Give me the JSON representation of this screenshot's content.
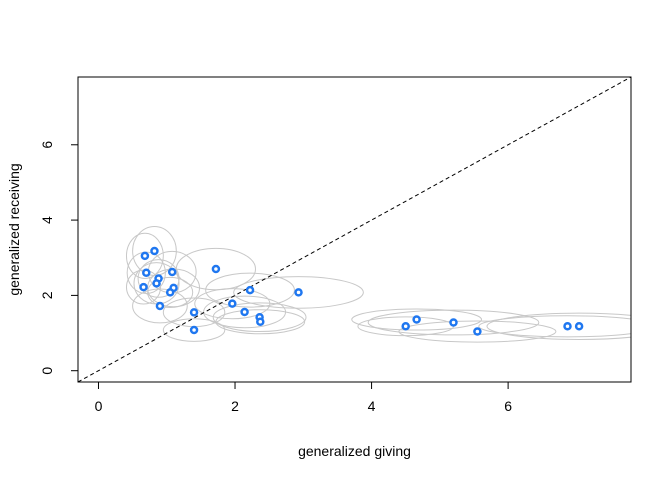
{
  "chart_data": {
    "type": "scatter",
    "title": "",
    "xlabel": "generalized giving",
    "ylabel": "generalized receiving",
    "xlim": [
      -0.3,
      7.8
    ],
    "ylim": [
      -0.3,
      7.8
    ],
    "xticks": [
      0,
      2,
      4,
      6
    ],
    "yticks": [
      0,
      2,
      4,
      6
    ],
    "grid": false,
    "legend": "none",
    "reference_line": {
      "type": "identity",
      "style": "dashed",
      "color": "#000000"
    },
    "point_color": "#1f77f0",
    "ellipse_color": "#c8c8c8",
    "points": [
      {
        "x": 0.68,
        "y": 3.05,
        "rx": 0.27,
        "ry": 0.6
      },
      {
        "x": 0.82,
        "y": 3.18,
        "rx": 0.32,
        "ry": 0.65
      },
      {
        "x": 0.7,
        "y": 2.6,
        "rx": 0.28,
        "ry": 0.55
      },
      {
        "x": 0.88,
        "y": 2.45,
        "rx": 0.3,
        "ry": 0.5
      },
      {
        "x": 0.85,
        "y": 2.32,
        "rx": 0.33,
        "ry": 0.55
      },
      {
        "x": 0.66,
        "y": 2.22,
        "rx": 0.25,
        "ry": 0.45
      },
      {
        "x": 1.08,
        "y": 2.62,
        "rx": 0.35,
        "ry": 0.55
      },
      {
        "x": 1.1,
        "y": 2.2,
        "rx": 0.38,
        "ry": 0.5
      },
      {
        "x": 1.05,
        "y": 2.08,
        "rx": 0.33,
        "ry": 0.4
      },
      {
        "x": 0.9,
        "y": 1.72,
        "rx": 0.4,
        "ry": 0.45
      },
      {
        "x": 1.72,
        "y": 2.7,
        "rx": 0.58,
        "ry": 0.55
      },
      {
        "x": 1.4,
        "y": 1.55,
        "rx": 0.45,
        "ry": 0.38
      },
      {
        "x": 1.4,
        "y": 1.08,
        "rx": 0.45,
        "ry": 0.3
      },
      {
        "x": 1.96,
        "y": 1.78,
        "rx": 0.55,
        "ry": 0.4
      },
      {
        "x": 2.22,
        "y": 2.14,
        "rx": 0.65,
        "ry": 0.45
      },
      {
        "x": 2.14,
        "y": 1.56,
        "rx": 0.6,
        "ry": 0.42
      },
      {
        "x": 2.36,
        "y": 1.42,
        "rx": 0.68,
        "ry": 0.38
      },
      {
        "x": 2.37,
        "y": 1.3,
        "rx": 0.65,
        "ry": 0.32
      },
      {
        "x": 2.93,
        "y": 2.08,
        "rx": 0.95,
        "ry": 0.42
      },
      {
        "x": 4.5,
        "y": 1.18,
        "rx": 0.7,
        "ry": 0.25
      },
      {
        "x": 4.66,
        "y": 1.36,
        "rx": 0.95,
        "ry": 0.28
      },
      {
        "x": 5.2,
        "y": 1.28,
        "rx": 1.25,
        "ry": 0.33
      },
      {
        "x": 5.55,
        "y": 1.04,
        "rx": 1.15,
        "ry": 0.28
      },
      {
        "x": 6.87,
        "y": 1.18,
        "rx": 1.3,
        "ry": 0.28
      },
      {
        "x": 7.04,
        "y": 1.18,
        "rx": 1.35,
        "ry": 0.35
      }
    ]
  }
}
